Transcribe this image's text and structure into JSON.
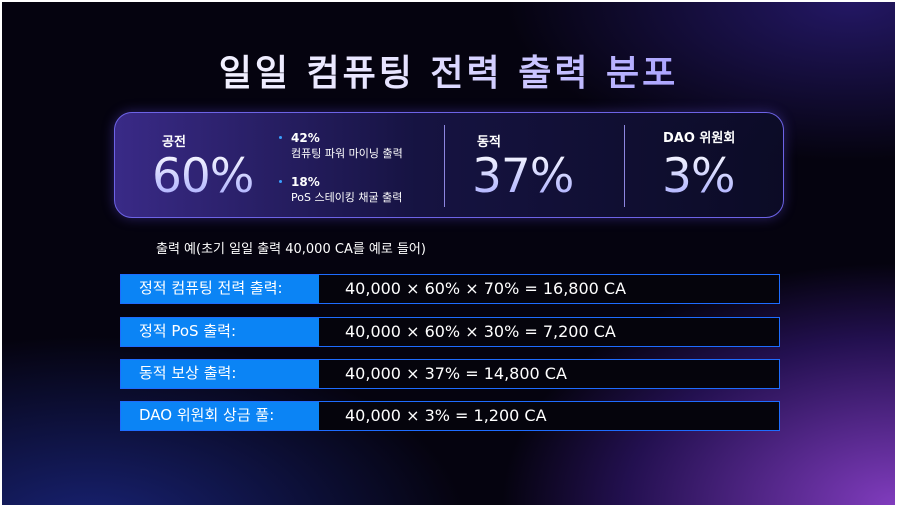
{
  "title": "일일 컴퓨팅 전력 출력 분포",
  "panel": {
    "fixed": {
      "label": "공전",
      "value": "60%",
      "items": [
        {
          "pct": "42%",
          "desc": "컴퓨팅 파워 마이닝 출력"
        },
        {
          "pct": "18%",
          "desc": "PoS 스테이킹 채굴 출력"
        }
      ]
    },
    "dynamic": {
      "label": "동적",
      "value": "37%"
    },
    "dao": {
      "label": "DAO 위원회",
      "value": "3%"
    }
  },
  "caption": "출력 예(초기 일일 출력 40,000 CA를 예로 들어)",
  "rows": [
    {
      "label": "정적 컴퓨팅 전력 출력:",
      "value": "40,000 × 60% × 70% = 16,800 CA"
    },
    {
      "label": "정적 PoS 출력:",
      "value": "40,000 × 60% × 30% = 7,200 CA"
    },
    {
      "label": "동적 보상 출력:",
      "value": "40,000 × 37% = 14,800 CA"
    },
    {
      "label": "DAO 위원회 상금 풀:",
      "value": "40,000 × 3% = 1,200 CA"
    }
  ],
  "colors": {
    "accent": "#0b84f5",
    "panel_border": "#6d63e6",
    "title_gradient_end": "#7d72ff"
  }
}
